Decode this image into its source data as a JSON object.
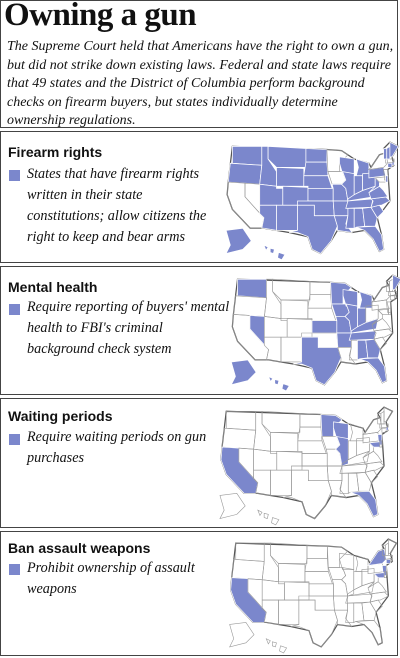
{
  "title": "Owning a gun",
  "intro": "The Supreme Court held that Americans have the right to own a gun, but did not strike down existing laws. Federal and state laws require that 49 states and the District of Columbia perform background checks on firearm buyers, but states individually determine ownership regulations.",
  "legend_color": "#7b87cc",
  "sections": [
    {
      "title": "Firearm rights",
      "legend": "States that have firearm rights written in their state constitutions; allow citizens the right to keep and bear arms",
      "shaded": [
        "AL",
        "AK",
        "AZ",
        "AR",
        "CO",
        "CT",
        "DE",
        "FL",
        "GA",
        "HI",
        "ID",
        "IL",
        "IN",
        "KS",
        "KY",
        "LA",
        "ME",
        "MI",
        "MS",
        "MO",
        "MT",
        "NE",
        "NH",
        "NM",
        "NC",
        "ND",
        "OH",
        "OK",
        "OR",
        "PA",
        "RI",
        "SC",
        "SD",
        "TN",
        "TX",
        "UT",
        "VT",
        "VA",
        "WA",
        "WV",
        "WI",
        "WY"
      ]
    },
    {
      "title": "Mental health",
      "legend": "Require reporting of buyers' mental health to FBI's criminal background check system",
      "shaded": [
        "WA",
        "NV",
        "IA",
        "IL",
        "MI",
        "IN",
        "KS",
        "MO",
        "TX",
        "AL",
        "GA",
        "FL",
        "KY",
        "AR",
        "MN",
        "WI",
        "TN",
        "AK",
        "HI",
        "ME"
      ]
    },
    {
      "title": "Waiting periods",
      "legend": "Require waiting periods on gun purchases",
      "shaded": [
        "CA",
        "MN",
        "WI",
        "IL",
        "FL",
        "NJ",
        "MD",
        "RI"
      ]
    },
    {
      "title": "Ban assault weapons",
      "legend": "Prohibit ownership of assault weapons",
      "shaded": [
        "CA",
        "NY",
        "NJ",
        "MD",
        "CT"
      ]
    }
  ]
}
